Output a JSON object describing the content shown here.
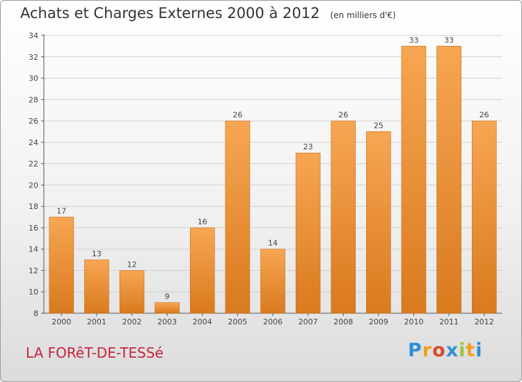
{
  "header": {
    "title": "Achats et Charges Externes 2000 à 2012",
    "subtitle": "(en milliers d'€)"
  },
  "footer": {
    "place": "LA FORêT-DE-TESSé",
    "logo": {
      "letters": [
        "P",
        "r",
        "o",
        "x",
        "i",
        "t",
        "i"
      ],
      "colors": [
        "#2f8fd8",
        "#f0a020",
        "#d64a2a",
        "#2f8fd8",
        "#9bc53d",
        "#f0a020",
        "#2f8fd8"
      ]
    }
  },
  "chart_data": {
    "type": "bar",
    "categories": [
      "2000",
      "2001",
      "2002",
      "2003",
      "2004",
      "2005",
      "2006",
      "2007",
      "2008",
      "2009",
      "2010",
      "2011",
      "2012"
    ],
    "values": [
      17,
      13,
      12,
      9,
      16,
      26,
      14,
      23,
      26,
      25,
      33,
      33,
      26
    ],
    "title": "Achats et Charges Externes 2000 à 2012",
    "subtitle": "(en milliers d'€)",
    "ylim": [
      8,
      34
    ],
    "yticks": [
      8,
      10,
      12,
      14,
      16,
      18,
      20,
      22,
      24,
      26,
      28,
      30,
      32,
      34
    ],
    "grid": true,
    "bar_color_top": "#f7a653",
    "bar_color_bottom": "#d97a1e"
  }
}
